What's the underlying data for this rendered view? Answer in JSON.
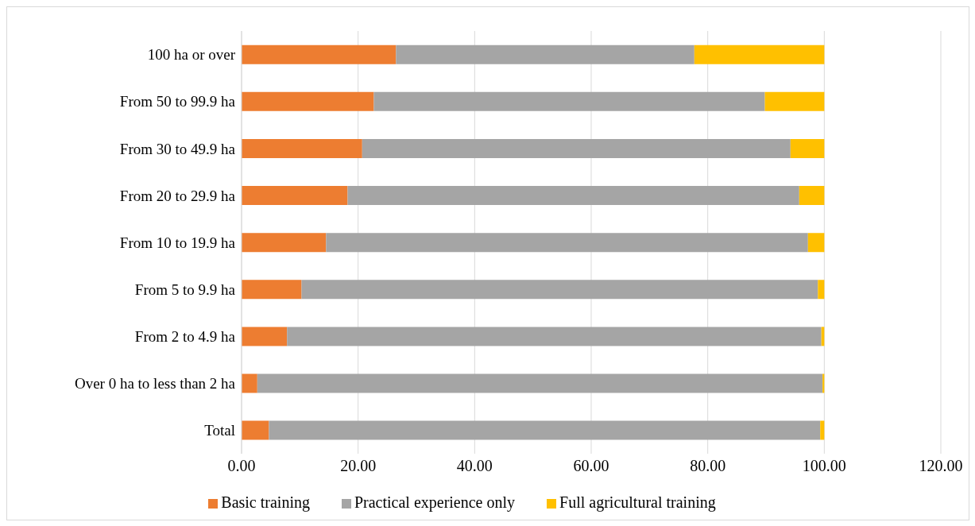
{
  "chart_data": {
    "type": "bar",
    "orientation": "horizontal",
    "stacked": true,
    "categories": [
      "100 ha or over",
      "From 50 to 99.9 ha",
      "From 30 to 49.9 ha",
      "From 20 to 29.9 ha",
      "From 10 to 19.9 ha",
      "From 5 to 9.9 ha",
      "From 2 to 4.9 ha",
      "Over 0 ha to less than 2 ha",
      "Total"
    ],
    "series": [
      {
        "name": "Basic training",
        "color": "#ed7d31",
        "values": [
          26.5,
          22.7,
          20.7,
          18.2,
          14.5,
          10.3,
          7.8,
          2.7,
          4.7
        ]
      },
      {
        "name": "Practical experience only",
        "color": "#a5a5a5",
        "values": [
          51.2,
          67.1,
          73.5,
          77.5,
          82.7,
          88.6,
          91.7,
          97.0,
          94.6
        ]
      },
      {
        "name": "Full agricultural training",
        "color": "#ffc000",
        "values": [
          22.3,
          10.2,
          5.8,
          4.3,
          2.8,
          1.1,
          0.5,
          0.3,
          0.7
        ]
      }
    ],
    "xlim": [
      0,
      120
    ],
    "xticks": [
      {
        "value": 0,
        "label": "0.00"
      },
      {
        "value": 20,
        "label": "20.00"
      },
      {
        "value": 40,
        "label": "40.00"
      },
      {
        "value": 60,
        "label": "60.00"
      },
      {
        "value": 80,
        "label": "80.00"
      },
      {
        "value": 100,
        "label": "100.00"
      },
      {
        "value": 120,
        "label": "120.00"
      }
    ],
    "grid": "x",
    "legend": "bottom"
  }
}
